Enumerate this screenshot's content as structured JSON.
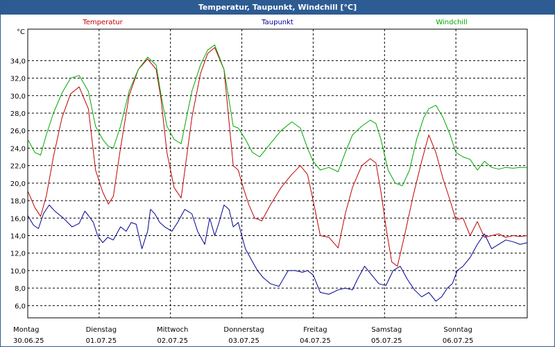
{
  "window": {
    "title": "Temperatur, Taupunkt, Windchill [°C]"
  },
  "chart_data": {
    "type": "line",
    "title": "Temperatur, Taupunkt, Windchill [°C]",
    "ylabel": "°C",
    "ylim": [
      4.6,
      37.6
    ],
    "yticks": [
      6,
      8,
      10,
      12,
      14,
      16,
      18,
      20,
      22,
      24,
      26,
      28,
      30,
      32,
      34
    ],
    "ytick_labels": [
      "6,0",
      "8,0",
      "10,0",
      "12,0",
      "14,0",
      "16,0",
      "18,0",
      "20,0",
      "22,0",
      "24,0",
      "26,0",
      "28,0",
      "30,0",
      "32,0",
      "34,0"
    ],
    "xlim": [
      0,
      7
    ],
    "days": [
      {
        "day": "Montag",
        "date": "30.06.25"
      },
      {
        "day": "Dienstag",
        "date": "01.07.25"
      },
      {
        "day": "Mittwoch",
        "date": "02.07.25"
      },
      {
        "day": "Donnerstag",
        "date": "03.07.25"
      },
      {
        "day": "Freitag",
        "date": "04.07.25"
      },
      {
        "day": "Samstag",
        "date": "05.07.25"
      },
      {
        "day": "Sonntag",
        "date": "06.07.25"
      }
    ],
    "grid": true,
    "series": [
      {
        "name": "Temperatur",
        "color": "#c00000",
        "x": [
          0,
          0.1,
          0.18,
          0.26,
          0.36,
          0.48,
          0.6,
          0.72,
          0.85,
          0.95,
          1.05,
          1.13,
          1.2,
          1.3,
          1.42,
          1.55,
          1.68,
          1.8,
          1.87,
          1.95,
          2.05,
          2.15,
          2.3,
          2.42,
          2.52,
          2.62,
          2.75,
          2.88,
          2.95,
          3.02,
          3.1,
          3.18,
          3.28,
          3.4,
          3.55,
          3.7,
          3.82,
          3.92,
          4.0,
          4.1,
          4.22,
          4.35,
          4.45,
          4.55,
          4.68,
          4.8,
          4.88,
          4.95,
          5.02,
          5.1,
          5.18,
          5.28,
          5.4,
          5.52,
          5.62,
          5.72,
          5.82,
          5.92,
          6.0,
          6.1,
          6.2,
          6.3,
          6.4,
          6.5,
          6.6,
          6.7,
          6.8,
          6.9,
          7.0
        ],
        "values": [
          19.1,
          17.2,
          16.2,
          18.5,
          23.0,
          27.5,
          30.2,
          31.0,
          28.5,
          21.5,
          19.0,
          17.6,
          18.5,
          24.0,
          30.0,
          33.0,
          34.2,
          33.0,
          29.5,
          23.5,
          19.5,
          18.3,
          27.5,
          32.5,
          34.8,
          35.5,
          33.0,
          22.0,
          21.5,
          19.5,
          17.5,
          16.0,
          15.7,
          17.5,
          19.5,
          21.0,
          22.0,
          21.0,
          18.0,
          14.0,
          13.8,
          12.6,
          16.5,
          19.5,
          22.0,
          22.8,
          22.3,
          19.0,
          15.0,
          11.0,
          10.5,
          14.0,
          18.5,
          22.5,
          25.5,
          23.5,
          20.5,
          18.0,
          15.8,
          16.0,
          14.0,
          15.6,
          13.8,
          14.0,
          14.2,
          13.8,
          14.0,
          13.9,
          14.0
        ]
      },
      {
        "name": "Taupunkt",
        "color": "#000090",
        "x": [
          0,
          0.08,
          0.15,
          0.22,
          0.3,
          0.38,
          0.5,
          0.62,
          0.72,
          0.8,
          0.85,
          0.92,
          0.98,
          1.05,
          1.12,
          1.2,
          1.3,
          1.38,
          1.45,
          1.52,
          1.6,
          1.68,
          1.72,
          1.78,
          1.85,
          1.92,
          2.02,
          2.1,
          2.2,
          2.3,
          2.38,
          2.48,
          2.55,
          2.62,
          2.68,
          2.75,
          2.82,
          2.88,
          2.95,
          3.05,
          3.15,
          3.22,
          3.3,
          3.4,
          3.52,
          3.65,
          3.75,
          3.85,
          3.92,
          4.0,
          4.1,
          4.22,
          4.35,
          4.45,
          4.55,
          4.62,
          4.72,
          4.82,
          4.92,
          5.02,
          5.12,
          5.22,
          5.32,
          5.42,
          5.52,
          5.62,
          5.72,
          5.8,
          5.88,
          5.95,
          6.02,
          6.1,
          6.2,
          6.3,
          6.4,
          6.5,
          6.6,
          6.7,
          6.8,
          6.9,
          7.0
        ],
        "values": [
          16.3,
          15.2,
          14.8,
          16.5,
          17.5,
          16.8,
          16.0,
          15.0,
          15.4,
          16.8,
          16.3,
          15.5,
          14.0,
          13.2,
          13.8,
          13.5,
          15.0,
          14.5,
          15.5,
          15.3,
          12.5,
          14.5,
          17.0,
          16.5,
          15.5,
          15.0,
          14.5,
          15.5,
          17.0,
          16.5,
          14.5,
          13.0,
          16.0,
          14.0,
          15.5,
          17.5,
          17.0,
          15.0,
          15.5,
          12.5,
          11.0,
          10.0,
          9.2,
          8.5,
          8.2,
          10.0,
          10.0,
          9.8,
          10.0,
          9.5,
          7.5,
          7.3,
          7.8,
          8.0,
          7.8,
          9.0,
          10.5,
          9.5,
          8.5,
          8.3,
          10.0,
          10.5,
          9.0,
          7.8,
          7.0,
          7.5,
          6.5,
          7.0,
          8.0,
          8.5,
          10.0,
          10.5,
          11.5,
          13.0,
          14.2,
          12.5,
          13.0,
          13.5,
          13.3,
          13.0,
          13.2
        ]
      },
      {
        "name": "Windchill",
        "color": "#00a800",
        "x": [
          0,
          0.1,
          0.18,
          0.26,
          0.36,
          0.48,
          0.6,
          0.72,
          0.85,
          0.95,
          1.05,
          1.13,
          1.2,
          1.3,
          1.42,
          1.55,
          1.68,
          1.8,
          1.87,
          1.95,
          2.05,
          2.15,
          2.3,
          2.42,
          2.52,
          2.62,
          2.75,
          2.88,
          2.95,
          3.05,
          3.15,
          3.25,
          3.4,
          3.55,
          3.7,
          3.82,
          3.92,
          4.0,
          4.1,
          4.22,
          4.35,
          4.45,
          4.55,
          4.68,
          4.8,
          4.88,
          4.95,
          5.05,
          5.15,
          5.25,
          5.35,
          5.45,
          5.55,
          5.62,
          5.72,
          5.82,
          5.92,
          6.0,
          6.1,
          6.2,
          6.3,
          6.4,
          6.5,
          6.6,
          6.7,
          6.8,
          6.9,
          7.0
        ],
        "values": [
          25.0,
          23.5,
          23.2,
          25.5,
          28.0,
          30.3,
          32.0,
          32.3,
          30.5,
          26.5,
          25.0,
          24.2,
          24.0,
          26.5,
          30.5,
          33.0,
          34.4,
          33.5,
          30.0,
          26.5,
          25.0,
          24.5,
          30.5,
          33.5,
          35.2,
          35.8,
          33.0,
          26.5,
          26.3,
          25.0,
          23.5,
          23.0,
          24.5,
          26.0,
          27.0,
          26.3,
          24.0,
          22.5,
          21.5,
          21.8,
          21.3,
          23.5,
          25.5,
          26.5,
          27.2,
          26.8,
          25.0,
          21.5,
          20.0,
          19.7,
          21.5,
          25.0,
          27.5,
          28.5,
          28.9,
          27.5,
          25.5,
          23.5,
          23.0,
          22.7,
          21.5,
          22.5,
          21.8,
          21.6,
          21.8,
          21.7,
          21.8,
          21.8
        ]
      }
    ]
  }
}
